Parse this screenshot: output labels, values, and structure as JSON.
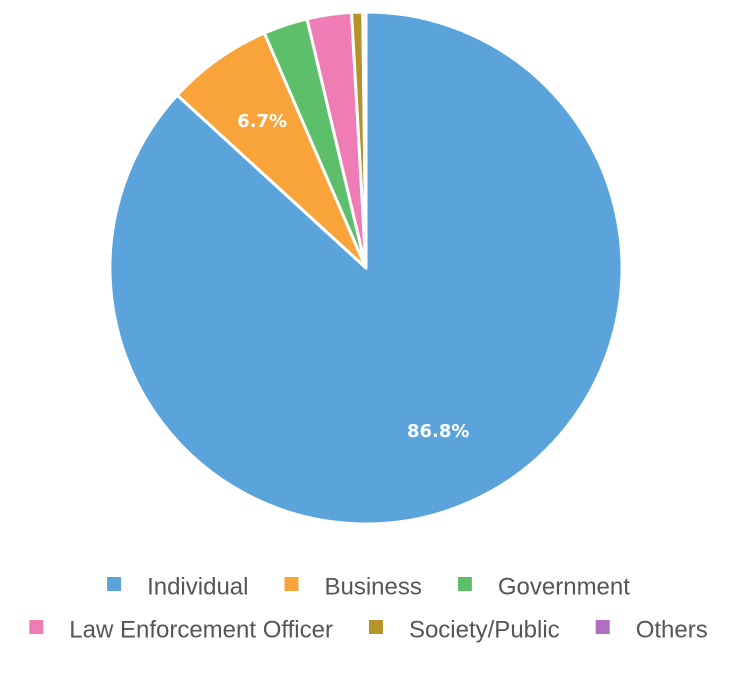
{
  "chart_data": {
    "type": "pie",
    "slices": [
      {
        "name": "Individual",
        "value": 86.8,
        "label": "86.8%",
        "color": "#5ba4db"
      },
      {
        "name": "Business",
        "value": 6.7,
        "label": "6.7%",
        "color": "#f9a43a"
      },
      {
        "name": "Government",
        "value": 2.8,
        "label": "",
        "color": "#5ebf6a"
      },
      {
        "name": "Law Enforcement Officer",
        "value": 2.8,
        "label": "",
        "color": "#f07cb6"
      },
      {
        "name": "Society/Public",
        "value": 0.7,
        "label": "",
        "color": "#b5922a"
      },
      {
        "name": "Others",
        "value": 0.2,
        "label": "",
        "color": "#b06fc0"
      }
    ],
    "legend_position": "bottom",
    "direction": "clockwise",
    "start": "top"
  }
}
